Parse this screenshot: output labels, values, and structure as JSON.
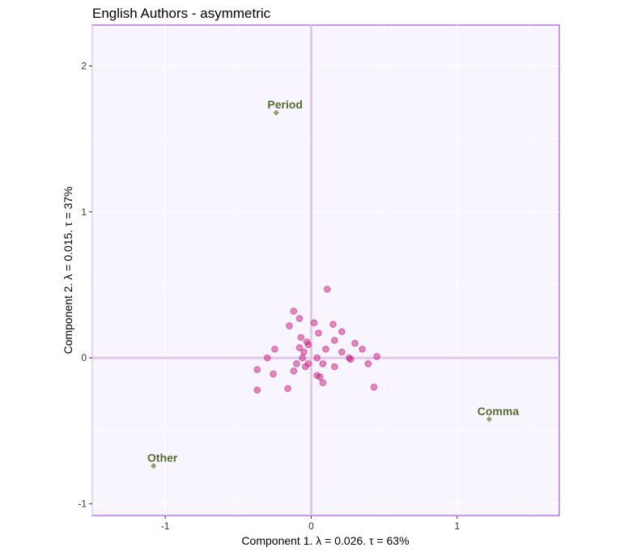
{
  "chart_data": {
    "type": "scatter",
    "title": "English Authors - asymmetric",
    "xlabel": "Component 1.   λ = 0.026.  τ = 63%",
    "ylabel": "Component 2.   λ = 0.015.  τ = 37%",
    "xlim": [
      -1.5,
      1.7
    ],
    "ylim": [
      -1.08,
      2.28
    ],
    "xticks": [
      -1,
      0,
      1
    ],
    "yticks": [
      -1,
      0,
      1,
      2
    ],
    "grid": true,
    "legend": "none",
    "series": [
      {
        "role": "row-points",
        "points": [
          [
            0.11,
            0.47
          ],
          [
            -0.12,
            0.32
          ],
          [
            -0.08,
            0.27
          ],
          [
            0.02,
            0.24
          ],
          [
            0.15,
            0.23
          ],
          [
            -0.15,
            0.22
          ],
          [
            0.21,
            0.18
          ],
          [
            0.05,
            0.17
          ],
          [
            -0.07,
            0.14
          ],
          [
            0.16,
            0.12
          ],
          [
            0.3,
            0.1
          ],
          [
            -0.03,
            0.11
          ],
          [
            -0.02,
            0.09
          ],
          [
            -0.08,
            0.07
          ],
          [
            0.1,
            0.06
          ],
          [
            -0.25,
            0.06
          ],
          [
            0.35,
            0.06
          ],
          [
            -0.05,
            0.04
          ],
          [
            0.21,
            0.04
          ],
          [
            -0.3,
            0.0
          ],
          [
            0.45,
            0.01
          ],
          [
            0.04,
            0.0
          ],
          [
            0.26,
            0.0
          ],
          [
            -0.06,
            0.0
          ],
          [
            0.27,
            -0.01
          ],
          [
            -0.1,
            -0.04
          ],
          [
            -0.02,
            -0.04
          ],
          [
            0.08,
            -0.04
          ],
          [
            -0.04,
            -0.06
          ],
          [
            0.16,
            -0.06
          ],
          [
            0.39,
            -0.04
          ],
          [
            -0.37,
            -0.08
          ],
          [
            -0.26,
            -0.11
          ],
          [
            -0.12,
            -0.09
          ],
          [
            0.04,
            -0.12
          ],
          [
            0.06,
            -0.13
          ],
          [
            0.08,
            -0.17
          ],
          [
            -0.16,
            -0.21
          ],
          [
            0.43,
            -0.2
          ],
          [
            -0.37,
            -0.22
          ]
        ],
        "color": "#c51b7d"
      },
      {
        "role": "column-points",
        "points": [
          {
            "label": "Period",
            "x": -0.24,
            "y": 1.68
          },
          {
            "label": "Comma",
            "x": 1.22,
            "y": -0.42
          },
          {
            "label": "Other",
            "x": -1.08,
            "y": -0.74
          }
        ],
        "color": "#8f9f6d",
        "label_color": "#556b2f"
      }
    ]
  },
  "colors": {
    "panel_bg": "#f8f5ff",
    "panel_border": "#9932cc",
    "grid": "#ffffff",
    "zero_line": "#e4c8e8"
  }
}
